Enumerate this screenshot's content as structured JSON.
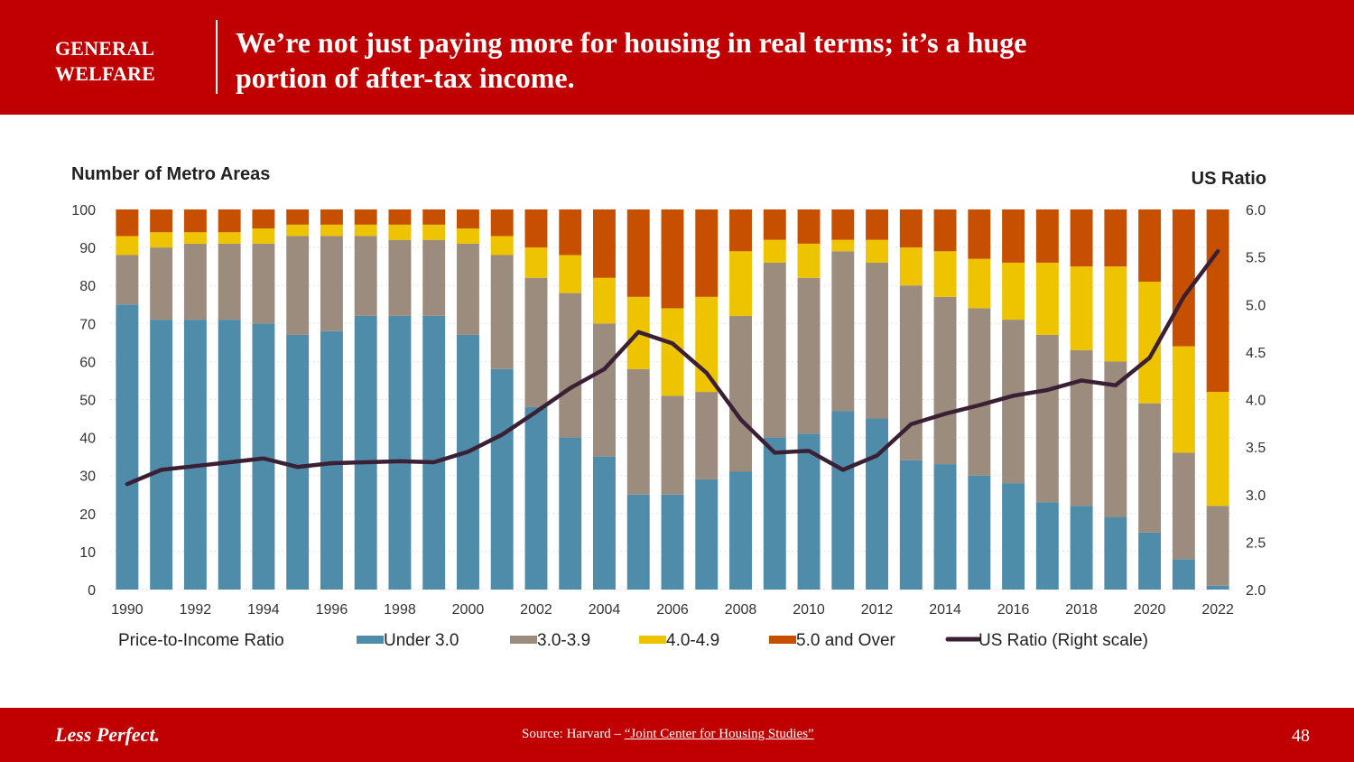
{
  "header": {
    "section": [
      "GENERAL",
      "WELFARE"
    ],
    "title_lines": [
      "We’re not just paying more for housing in real terms; it’s a huge",
      "portion of after-tax income."
    ]
  },
  "footer": {
    "brand": "Less Perfect.",
    "source_prefix": "Source: Harvard – ",
    "source_link": "“Joint Center for Housing Studies”",
    "page_number": "48"
  },
  "colors": {
    "brand_red": "#C00000",
    "under_3": "#4E8CA9",
    "r3_to_3_9": "#9C8C7E",
    "r4_to_4_9": "#EEC300",
    "r5_over": "#C75000",
    "us_ratio": "#3A1F35"
  },
  "chart_data": {
    "type": "bar",
    "stacked": true,
    "title": "",
    "ylabel": "Number of Metro Areas",
    "y2label": "US Ratio",
    "ylim": [
      0,
      100
    ],
    "y2lim": [
      2.0,
      6.0
    ],
    "yticks": [
      "0",
      "10",
      "20",
      "30",
      "40",
      "50",
      "60",
      "70",
      "80",
      "90",
      "100"
    ],
    "y2ticks": [
      "2.0",
      "2.5",
      "3.0",
      "3.5",
      "4.0",
      "4.5",
      "5.0",
      "5.5",
      "6.0"
    ],
    "categories": [
      1990,
      1991,
      1992,
      1993,
      1994,
      1995,
      1996,
      1997,
      1998,
      1999,
      2000,
      2001,
      2002,
      2003,
      2004,
      2005,
      2006,
      2007,
      2008,
      2009,
      2010,
      2011,
      2012,
      2013,
      2014,
      2015,
      2016,
      2017,
      2018,
      2019,
      2020,
      2021,
      2022
    ],
    "xtick_labels": [
      "1990",
      "",
      "1992",
      "",
      "1994",
      "",
      "1996",
      "",
      "1998",
      "",
      "2000",
      "",
      "2002",
      "",
      "2004",
      "",
      "2006",
      "",
      "2008",
      "",
      "2010",
      "",
      "2012",
      "",
      "2014",
      "",
      "2016",
      "",
      "2018",
      "",
      "2020",
      "",
      "2022"
    ],
    "legend_title": "Price-to-Income Ratio",
    "legend_position": "bottom",
    "grid": true,
    "series": [
      {
        "name": "Under 3.0",
        "key": "under_3",
        "values": [
          75,
          71,
          71,
          71,
          70,
          67,
          68,
          72,
          72,
          72,
          67,
          58,
          48,
          40,
          35,
          25,
          25,
          29,
          31,
          40,
          41,
          47,
          45,
          34,
          33,
          30,
          28,
          23,
          22,
          19,
          15,
          8,
          1
        ]
      },
      {
        "name": "3.0-3.9",
        "key": "r3_to_3_9",
        "values": [
          13,
          19,
          20,
          20,
          21,
          26,
          25,
          21,
          20,
          20,
          24,
          30,
          34,
          38,
          35,
          33,
          26,
          23,
          41,
          46,
          41,
          42,
          41,
          46,
          44,
          44,
          43,
          44,
          41,
          41,
          34,
          28,
          21
        ]
      },
      {
        "name": "4.0-4.9",
        "key": "r4_to_4_9",
        "values": [
          5,
          4,
          3,
          3,
          4,
          3,
          3,
          3,
          4,
          4,
          4,
          5,
          8,
          10,
          12,
          19,
          23,
          25,
          17,
          6,
          9,
          3,
          6,
          10,
          12,
          13,
          15,
          19,
          22,
          25,
          32,
          28,
          30
        ]
      },
      {
        "name": "5.0 and Over",
        "key": "r5_over",
        "values": [
          7,
          6,
          6,
          6,
          5,
          4,
          4,
          4,
          4,
          4,
          5,
          7,
          10,
          12,
          18,
          23,
          26,
          23,
          11,
          8,
          9,
          8,
          8,
          10,
          11,
          13,
          14,
          14,
          15,
          15,
          19,
          36,
          48
        ]
      }
    ],
    "line_series": {
      "name": "US Ratio (Right scale)",
      "key": "us_ratio",
      "axis": "right",
      "values": [
        3.11,
        3.26,
        3.3,
        3.34,
        3.38,
        3.29,
        3.33,
        3.34,
        3.35,
        3.34,
        3.45,
        3.63,
        3.87,
        4.12,
        4.32,
        4.71,
        4.59,
        4.28,
        3.79,
        3.44,
        3.46,
        3.26,
        3.41,
        3.74,
        3.85,
        3.94,
        4.04,
        4.1,
        4.2,
        4.15,
        4.44,
        5.08,
        5.56
      ]
    }
  }
}
